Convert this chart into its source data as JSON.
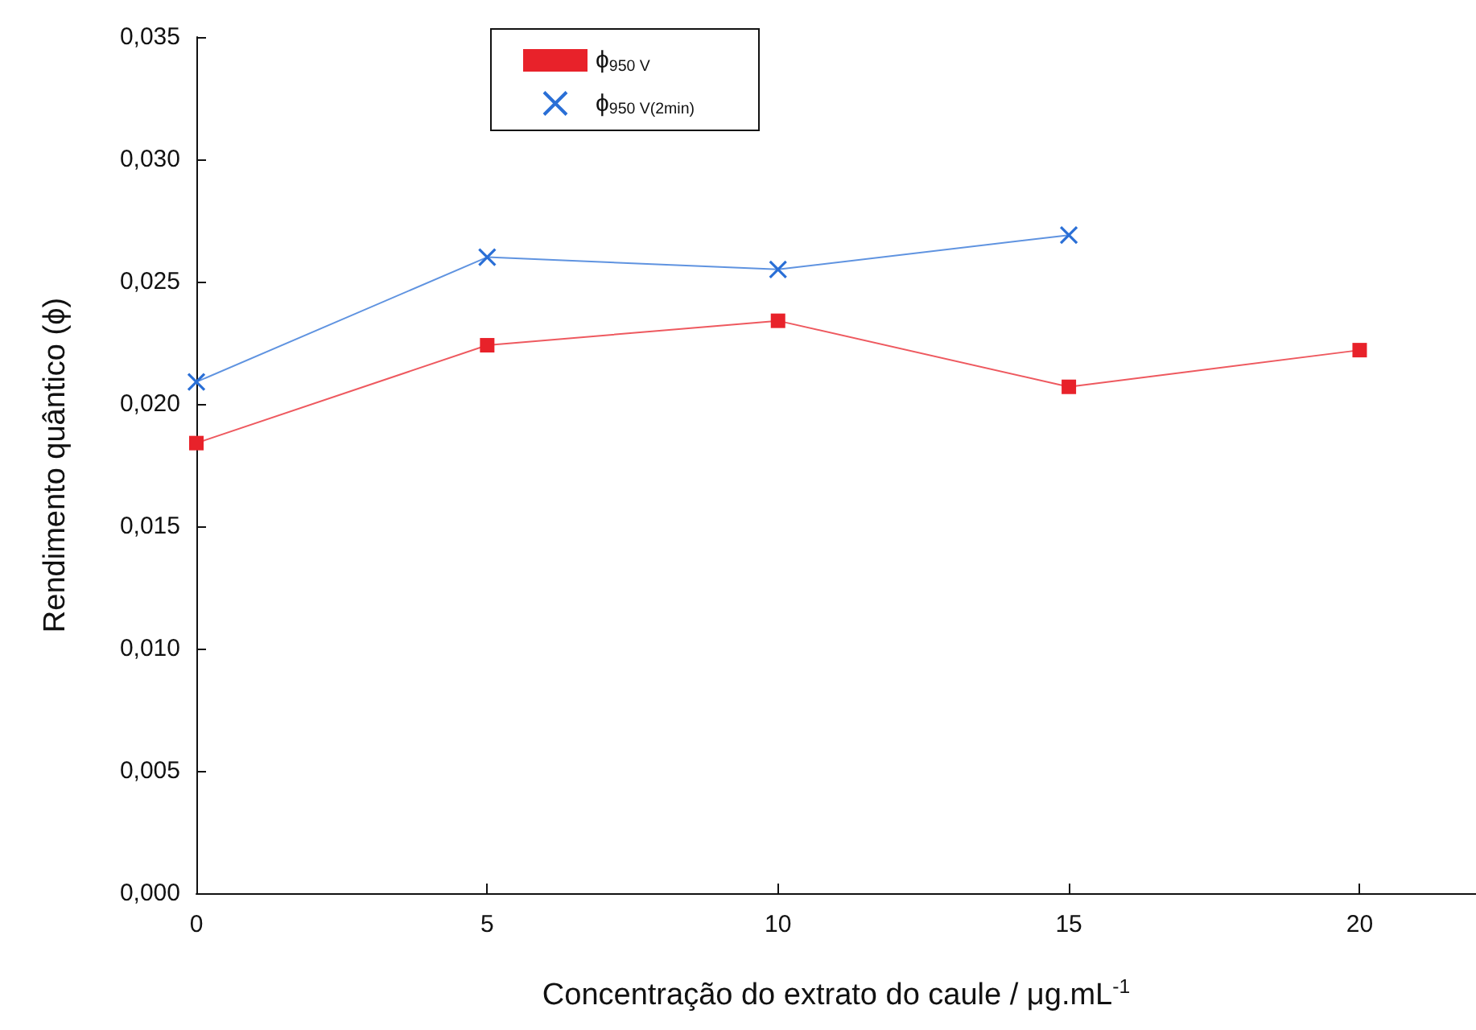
{
  "chart_data": {
    "type": "line",
    "xlabel": "Concentração do extrato do caule / μg.mL$^{-1}$",
    "ylabel": "Rendimento quântico (ϕ)",
    "x": [
      0,
      5,
      10,
      15,
      20
    ],
    "series": [
      {
        "name": "ϕ$_{950 V}$",
        "color": "#e8222a",
        "marker": "square",
        "values": [
          0.0184,
          0.0224,
          0.0234,
          0.0207,
          0.0222
        ]
      },
      {
        "name": "ϕ$_{950 V(2min)}$",
        "color": "#2a6fd6",
        "marker": "cross",
        "values": [
          0.0209,
          0.026,
          0.0255,
          0.0269,
          null
        ]
      }
    ],
    "xlim": [
      0,
      22
    ],
    "xticks": [
      0,
      5,
      10,
      15,
      20
    ],
    "ylim": [
      0,
      0.035
    ],
    "yticks": [
      {
        "value": 0,
        "label": "0,000"
      },
      {
        "value": 0.005,
        "label": "0,005"
      },
      {
        "value": 0.01,
        "label": "0,010"
      },
      {
        "value": 0.015,
        "label": "0,015"
      },
      {
        "value": 0.02,
        "label": "0,020"
      },
      {
        "value": 0.025,
        "label": "0,025"
      },
      {
        "value": 0.03,
        "label": "0,030"
      },
      {
        "value": 0.035,
        "label": "0,035"
      }
    ],
    "grid": false,
    "legend": "top",
    "line_style": "solid"
  }
}
